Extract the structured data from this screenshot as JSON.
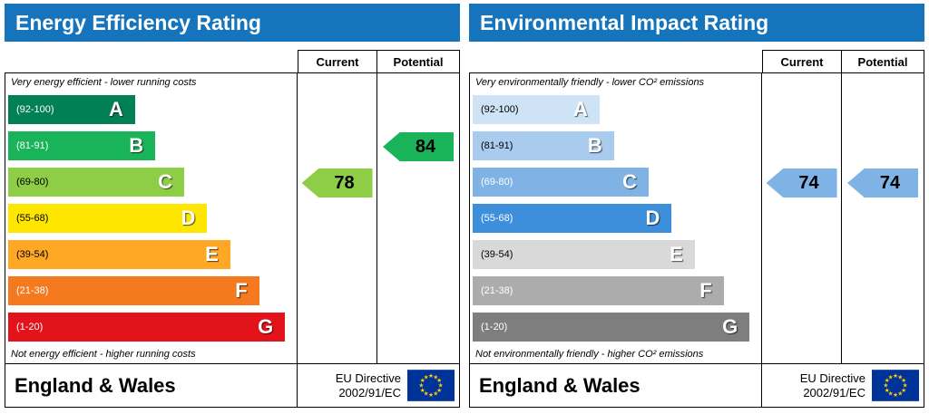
{
  "left_panel": {
    "title": "Energy Efficiency Rating",
    "columns": {
      "current": "Current",
      "potential": "Potential"
    },
    "top_note": "Very energy efficient - lower running costs",
    "bottom_note": "Not energy efficient - higher running costs",
    "bands": [
      {
        "letter": "A",
        "range": "(92-100)",
        "width": "44%",
        "color": "#008054",
        "range_color": "#ffffff"
      },
      {
        "letter": "B",
        "range": "(81-91)",
        "width": "51%",
        "color": "#19B459",
        "range_color": "#ffffff"
      },
      {
        "letter": "C",
        "range": "(69-80)",
        "width": "61%",
        "color": "#8DCE46",
        "range_color": "#000000"
      },
      {
        "letter": "D",
        "range": "(55-68)",
        "width": "69%",
        "color": "#FFE600",
        "range_color": "#000000"
      },
      {
        "letter": "E",
        "range": "(39-54)",
        "width": "77%",
        "color": "#FFA826",
        "range_color": "#000000"
      },
      {
        "letter": "F",
        "range": "(21-38)",
        "width": "87%",
        "color": "#F4791F",
        "range_color": "#ffffff"
      },
      {
        "letter": "G",
        "range": "(1-20)",
        "width": "96%",
        "color": "#E2131B",
        "range_color": "#ffffff"
      }
    ],
    "current": {
      "value": "78",
      "band_index": 2,
      "color": "#8DCE46"
    },
    "potential": {
      "value": "84",
      "band_index": 1,
      "color": "#19B459"
    },
    "footer": {
      "region": "England & Wales",
      "directive_line1": "EU Directive",
      "directive_line2": "2002/91/EC"
    }
  },
  "right_panel": {
    "title": "Environmental Impact Rating",
    "columns": {
      "current": "Current",
      "potential": "Potential"
    },
    "top_note": "Very environmentally friendly - lower CO² emissions",
    "bottom_note": "Not environmentally friendly - higher CO² emissions",
    "bands": [
      {
        "letter": "A",
        "range": "(92-100)",
        "width": "44%",
        "color": "#CEE4F6",
        "range_color": "#000000"
      },
      {
        "letter": "B",
        "range": "(81-91)",
        "width": "49%",
        "color": "#A9CCEE",
        "range_color": "#000000"
      },
      {
        "letter": "C",
        "range": "(69-80)",
        "width": "61%",
        "color": "#7FB2E5",
        "range_color": "#ffffff"
      },
      {
        "letter": "D",
        "range": "(55-68)",
        "width": "69%",
        "color": "#3D8FDC",
        "range_color": "#ffffff"
      },
      {
        "letter": "E",
        "range": "(39-54)",
        "width": "77%",
        "color": "#D9D9D9",
        "range_color": "#000000"
      },
      {
        "letter": "F",
        "range": "(21-38)",
        "width": "87%",
        "color": "#ACACAC",
        "range_color": "#ffffff"
      },
      {
        "letter": "G",
        "range": "(1-20)",
        "width": "96%",
        "color": "#7E7E7E",
        "range_color": "#ffffff"
      }
    ],
    "current": {
      "value": "74",
      "band_index": 2,
      "color": "#7FB2E5"
    },
    "potential": {
      "value": "74",
      "band_index": 2,
      "color": "#7FB2E5"
    },
    "footer": {
      "region": "England & Wales",
      "directive_line1": "EU Directive",
      "directive_line2": "2002/91/EC"
    }
  },
  "chart_data": [
    {
      "type": "bar",
      "title": "Energy Efficiency Rating",
      "categories": [
        "A (92-100)",
        "B (81-91)",
        "C (69-80)",
        "D (55-68)",
        "E (39-54)",
        "F (21-38)",
        "G (1-20)"
      ],
      "values": [
        44,
        51,
        61,
        69,
        77,
        87,
        96
      ],
      "values_note": "relative band bar widths in percent of chart column",
      "current_rating": 78,
      "current_band": "C",
      "potential_rating": 84,
      "potential_band": "B",
      "top_annotation": "Very energy efficient - lower running costs",
      "bottom_annotation": "Not energy efficient - higher running costs",
      "legend_position": "none",
      "grid": false
    },
    {
      "type": "bar",
      "title": "Environmental Impact Rating",
      "categories": [
        "A (92-100)",
        "B (81-91)",
        "C (69-80)",
        "D (55-68)",
        "E (39-54)",
        "F (21-38)",
        "G (1-20)"
      ],
      "values": [
        44,
        49,
        61,
        69,
        77,
        87,
        96
      ],
      "values_note": "relative band bar widths in percent of chart column",
      "current_rating": 74,
      "current_band": "C",
      "potential_rating": 74,
      "potential_band": "C",
      "top_annotation": "Very environmentally friendly - lower CO² emissions",
      "bottom_annotation": "Not environmentally friendly - higher CO² emissions",
      "legend_position": "none",
      "grid": false
    }
  ]
}
